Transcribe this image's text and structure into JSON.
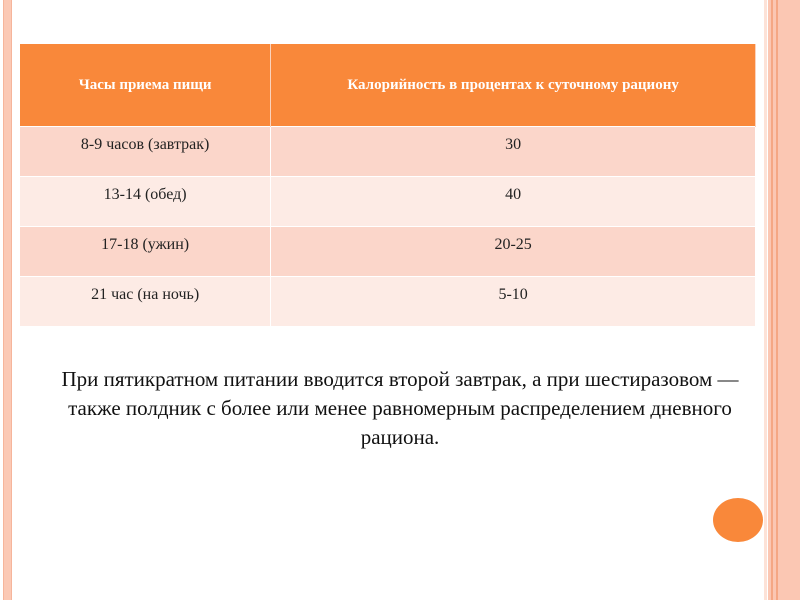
{
  "table": {
    "headers": [
      "Часы приема пищи",
      "Калорийность в процентах к суточному рациону"
    ],
    "rows": [
      [
        "8-9 часов (завтрак)",
        "30"
      ],
      [
        "13-14  (обед)",
        "40"
      ],
      [
        "17-18  (ужин)",
        "20-25"
      ],
      [
        "21 час (на ночь)",
        "5-10"
      ]
    ]
  },
  "paragraph": "При пятикратном питании вводится второй завтрак, а при шестиразовом — также полдник с более или менее равномерным распределением дневного рациона.",
  "colors": {
    "accent": "#f9883a",
    "row_odd": "#fbd6ca",
    "row_even": "#fdebe5"
  }
}
